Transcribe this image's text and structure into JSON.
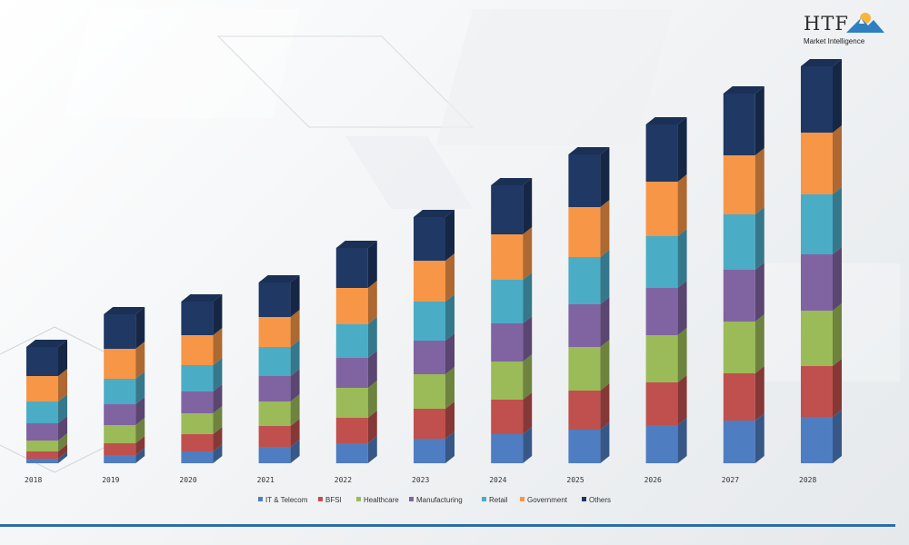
{
  "logo": {
    "main": "HTF",
    "sub": "Market Intelligence"
  },
  "chart_data": {
    "type": "bar",
    "stacked": true,
    "style": "3d",
    "categories": [
      "2018",
      "2019",
      "2020",
      "2021",
      "2022",
      "2023",
      "2024",
      "2025",
      "2026",
      "2027",
      "2028"
    ],
    "series": [
      {
        "name": "IT & Telecom",
        "color": "#4f7dc1",
        "values": [
          5,
          9,
          13,
          18,
          22,
          27,
          32,
          37,
          42,
          47,
          51
        ]
      },
      {
        "name": "BFSI",
        "color": "#c0504d",
        "values": [
          8,
          13,
          19,
          23,
          28,
          33,
          38,
          43,
          47,
          52,
          56
        ]
      },
      {
        "name": "Healthcare",
        "color": "#9bbb59",
        "values": [
          12,
          20,
          23,
          27,
          33,
          38,
          42,
          48,
          52,
          57,
          61
        ]
      },
      {
        "name": "Manufacturing",
        "color": "#8064a2",
        "values": [
          19,
          23,
          24,
          28,
          33,
          37,
          42,
          47,
          52,
          57,
          62
        ]
      },
      {
        "name": "Retail",
        "color": "#4bacc6",
        "values": [
          24,
          28,
          29,
          32,
          37,
          43,
          48,
          52,
          57,
          61,
          66
        ]
      },
      {
        "name": "Government",
        "color": "#f79646",
        "values": [
          28,
          33,
          33,
          33,
          40,
          45,
          50,
          55,
          60,
          65,
          68
        ]
      },
      {
        "name": "Others",
        "color": "#1f3864",
        "values": [
          32,
          38,
          37,
          38,
          44,
          48,
          54,
          58,
          63,
          68,
          73
        ]
      }
    ],
    "title": "",
    "xlabel": "",
    "ylabel": "",
    "ylim": [
      0,
      440
    ],
    "grid": false,
    "axis_visible": false,
    "legend_position": "bottom"
  }
}
